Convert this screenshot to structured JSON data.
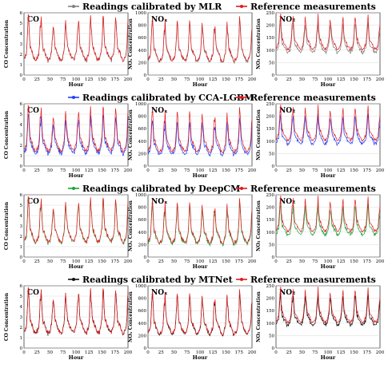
{
  "chart_data": {
    "type": "line",
    "x_label": "Hour",
    "x_ticks": [
      0,
      25,
      50,
      75,
      100,
      125,
      150,
      175,
      200
    ],
    "reference_label": "Reference measurements",
    "reference_color": "#e31a1c",
    "panel_titles": [
      "CO",
      "NOₓ",
      "NO₂"
    ],
    "y_labels": [
      "CO Concentration",
      "NOₓ Concentration",
      "NO₂ Concentration"
    ],
    "y_ranges": [
      [
        0,
        6
      ],
      [
        0,
        1000
      ],
      [
        0,
        250
      ]
    ],
    "y_ticks": [
      [
        0,
        1,
        2,
        3,
        4,
        5,
        6
      ],
      [
        0,
        200,
        400,
        600,
        800,
        1000
      ],
      [
        0,
        50,
        100,
        150,
        200,
        250
      ]
    ],
    "base_levels": [
      2.1,
      330,
      125
    ],
    "peak_levels": [
      5.6,
      860,
      235
    ],
    "rows": [
      {
        "model": "Readings calibrated by MLR",
        "color": "#808080",
        "bias": [
          0.98,
          0.95,
          0.88
        ]
      },
      {
        "model": "Readings calibrated by CCA-LGBM",
        "color": "#1f3fff",
        "bias": [
          0.85,
          0.82,
          0.86
        ]
      },
      {
        "model": "Readings calibrated by DeepCM",
        "color": "#1aa33a",
        "bias": [
          0.97,
          0.93,
          0.87
        ]
      },
      {
        "model": "Readings calibrated by MTNet",
        "color": "#111111",
        "bias": [
          0.99,
          0.97,
          0.9
        ]
      }
    ]
  }
}
